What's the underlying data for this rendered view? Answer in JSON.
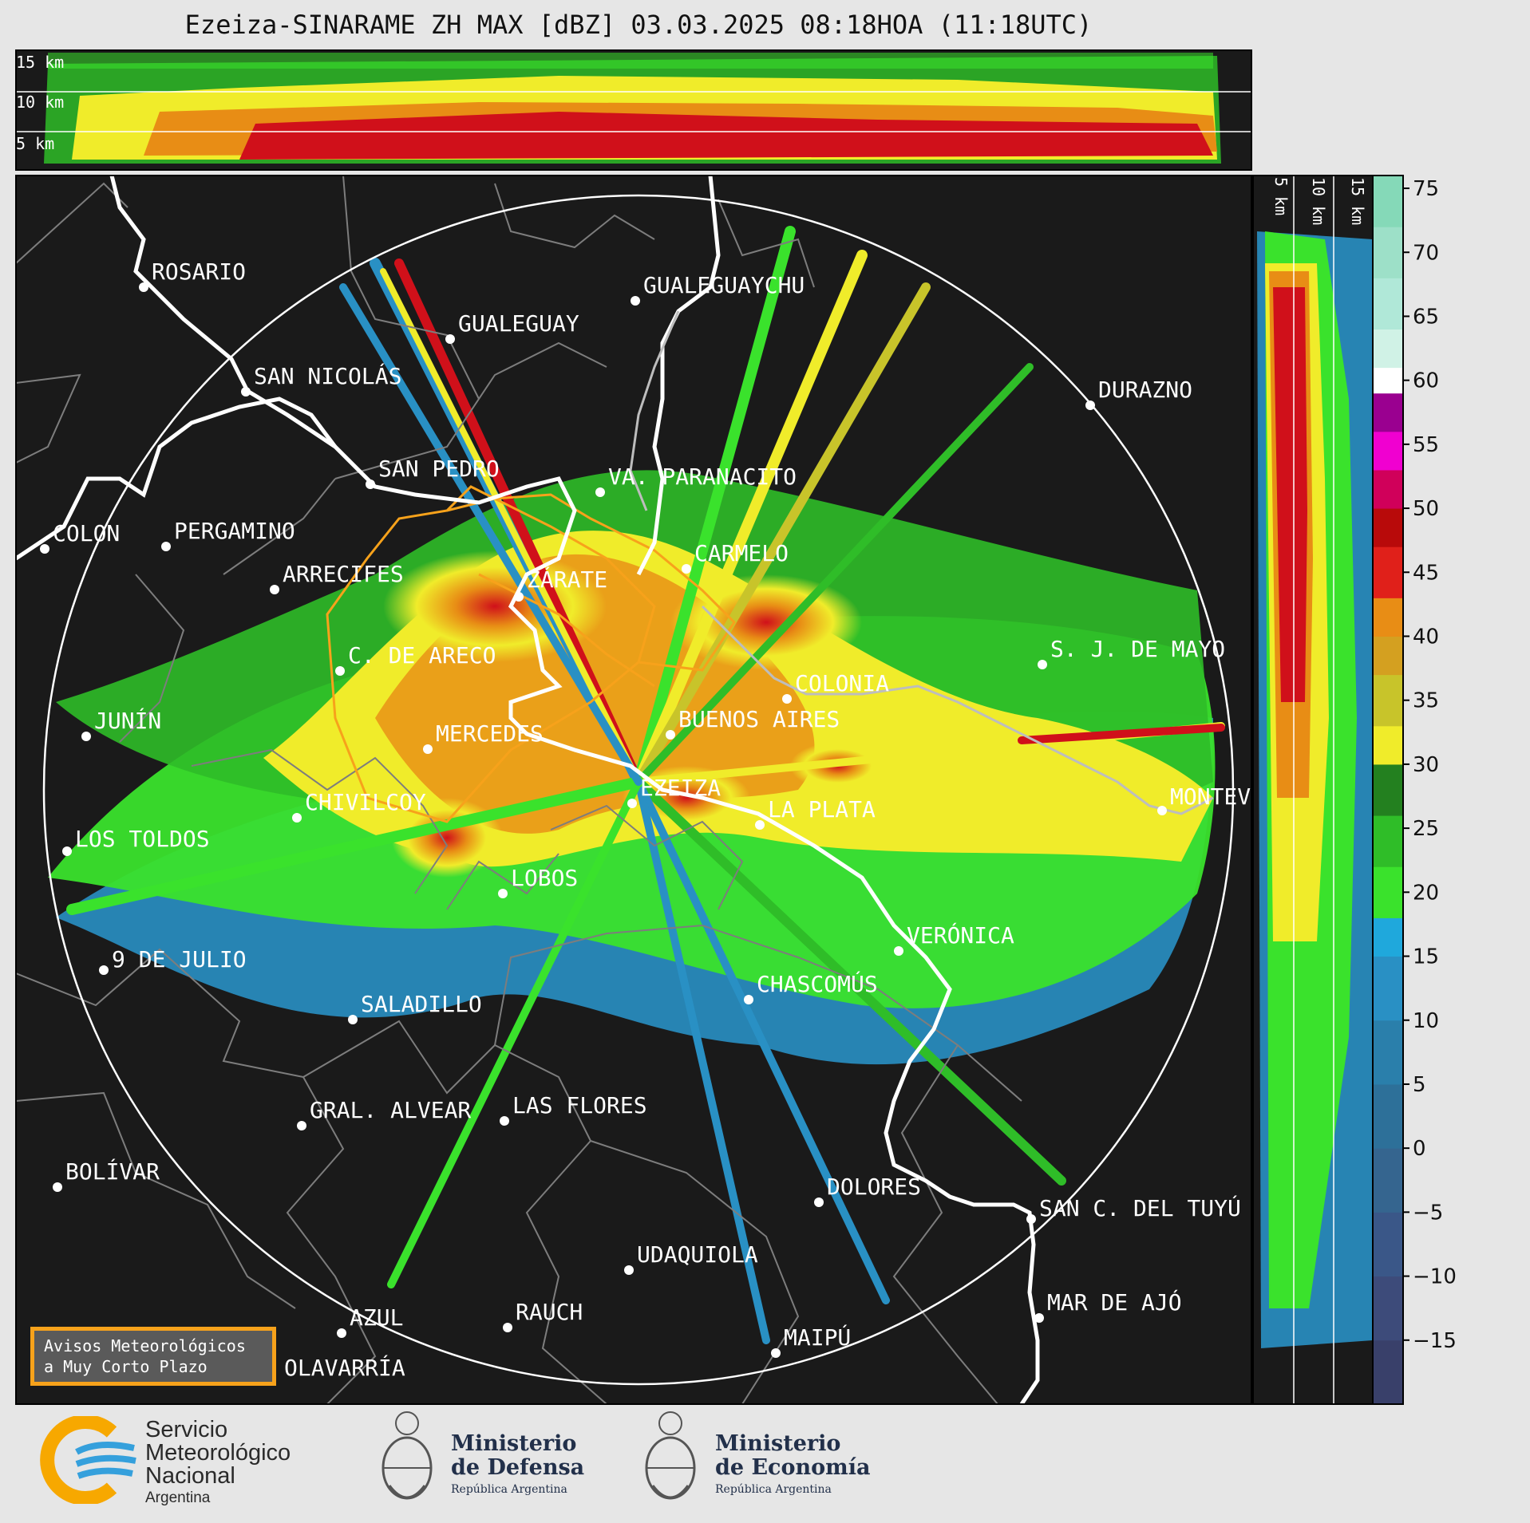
{
  "title": "Ezeiza-SINARAME ZH MAX [dBZ] 03.03.2025 08:18HOA (11:18UTC)",
  "top_profile_heights": [
    "15 km",
    "10 km",
    "5 km"
  ],
  "side_profile_heights": [
    "5 km",
    "10 km",
    "15 km"
  ],
  "colorbar": {
    "unit": "dBZ",
    "ticks": [
      "75",
      "70",
      "65",
      "60",
      "55",
      "50",
      "45",
      "40",
      "35",
      "30",
      "25",
      "20",
      "15",
      "10",
      "5",
      "0",
      "−5",
      "−10",
      "−15"
    ],
    "value_range": [
      -20,
      76
    ],
    "bands": [
      {
        "from": -20,
        "to": -15,
        "color": "#39406a"
      },
      {
        "from": -15,
        "to": -10,
        "color": "#3d4b7a"
      },
      {
        "from": -10,
        "to": -5,
        "color": "#3a5788"
      },
      {
        "from": -5,
        "to": 0,
        "color": "#35658f"
      },
      {
        "from": 0,
        "to": 5,
        "color": "#2d7099"
      },
      {
        "from": 5,
        "to": 10,
        "color": "#2a7fab"
      },
      {
        "from": 10,
        "to": 15,
        "color": "#2990c4"
      },
      {
        "from": 15,
        "to": 18,
        "color": "#1fa8dc"
      },
      {
        "from": 18,
        "to": 22,
        "color": "#3ae22c"
      },
      {
        "from": 22,
        "to": 26,
        "color": "#2fbd28"
      },
      {
        "from": 26,
        "to": 30,
        "color": "#23801f"
      },
      {
        "from": 30,
        "to": 33,
        "color": "#f0ec2a"
      },
      {
        "from": 33,
        "to": 37,
        "color": "#c8c42a"
      },
      {
        "from": 37,
        "to": 40,
        "color": "#d4a020"
      },
      {
        "from": 40,
        "to": 43,
        "color": "#e88d15"
      },
      {
        "from": 43,
        "to": 47,
        "color": "#e0201a"
      },
      {
        "from": 47,
        "to": 50,
        "color": "#b80a0a"
      },
      {
        "from": 50,
        "to": 53,
        "color": "#d0005a"
      },
      {
        "from": 53,
        "to": 56,
        "color": "#f000d0"
      },
      {
        "from": 56,
        "to": 59,
        "color": "#9a0090"
      },
      {
        "from": 59,
        "to": 61,
        "color": "#ffffff"
      },
      {
        "from": 61,
        "to": 64,
        "color": "#d0f2e6"
      },
      {
        "from": 64,
        "to": 68,
        "color": "#b0e8d8"
      },
      {
        "from": 68,
        "to": 72,
        "color": "#9de0c8"
      },
      {
        "from": 72,
        "to": 76,
        "color": "#85d9b8"
      }
    ]
  },
  "cities": [
    {
      "name": "ROSARIO"
    },
    {
      "name": "GUALEGUAYCHU"
    },
    {
      "name": "GUALEGUAY"
    },
    {
      "name": "SAN NICOLÁS"
    },
    {
      "name": "DURAZNO"
    },
    {
      "name": "SAN PEDRO"
    },
    {
      "name": "VA. PARANACITO"
    },
    {
      "name": "COLON"
    },
    {
      "name": "PERGAMINO"
    },
    {
      "name": "CARMELO"
    },
    {
      "name": "ARRECIFES"
    },
    {
      "name": "ZÁRATE"
    },
    {
      "name": "S. J. DE MAYO"
    },
    {
      "name": "C. DE ARECO"
    },
    {
      "name": "COLONIA"
    },
    {
      "name": "JUNÍN"
    },
    {
      "name": "BUENOS AIRES"
    },
    {
      "name": "MERCEDES"
    },
    {
      "name": "EZEIZA"
    },
    {
      "name": "MONTEV"
    },
    {
      "name": "CHIVILCOY"
    },
    {
      "name": "LA PLATA"
    },
    {
      "name": "LOS TOLDOS"
    },
    {
      "name": "LOBOS"
    },
    {
      "name": "VERÓNICA"
    },
    {
      "name": "9 DE JULIO"
    },
    {
      "name": "CHASCOMÚS"
    },
    {
      "name": "SALADILLO"
    },
    {
      "name": "GRAL. ALVEAR"
    },
    {
      "name": "LAS FLORES"
    },
    {
      "name": "BOLÍVAR"
    },
    {
      "name": "DOLORES"
    },
    {
      "name": "SAN C. DEL TUYÚ"
    },
    {
      "name": "UDAQUIOLA"
    },
    {
      "name": "MAR DE AJÓ"
    },
    {
      "name": "AZUL"
    },
    {
      "name": "RAUCH"
    },
    {
      "name": "OLAVARRÍA"
    },
    {
      "name": "MAIPÚ"
    }
  ],
  "avisos_button": {
    "line1": "Avisos Meteorológicos",
    "line2": "a Muy Corto Plazo"
  },
  "footer": {
    "smn": {
      "line1": "Servicio",
      "line2": "Meteorológico",
      "line3": "Nacional",
      "line4": "Argentina"
    },
    "defensa": {
      "line1": "Ministerio",
      "line2": "de Defensa",
      "line3": "República Argentina"
    },
    "economia": {
      "line1": "Ministerio",
      "line2": "de Economía",
      "line3": "República Argentina"
    }
  }
}
